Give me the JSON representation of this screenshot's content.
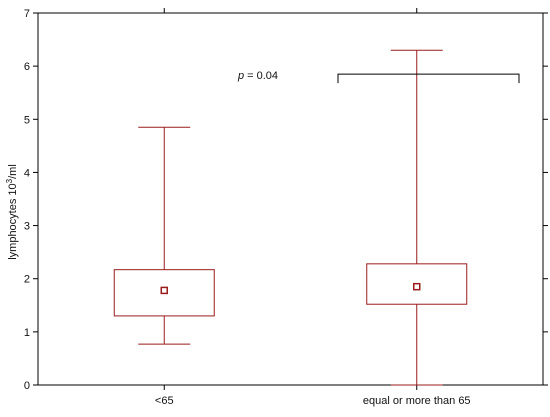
{
  "chart_data": {
    "type": "box",
    "title": "",
    "ylabel_main": "lymphocytes 10",
    "ylabel_sup": "3",
    "ylabel_tail": "/ml",
    "xlabel": "",
    "ylim": [
      0,
      7
    ],
    "yticks": [
      0,
      1,
      2,
      3,
      4,
      5,
      6,
      7
    ],
    "grid": false,
    "colors": {
      "box": "#9b1c1c",
      "bracket": "#000000"
    },
    "categories": [
      "<65",
      "equal or more than 65"
    ],
    "boxes": [
      {
        "category": "<65",
        "whisker_low": 0.77,
        "q1": 1.3,
        "median": 1.78,
        "q3": 2.17,
        "whisker_high": 4.85
      },
      {
        "category": "equal or more than 65",
        "whisker_low": 0.0,
        "q1": 1.52,
        "median": 1.85,
        "q3": 2.28,
        "whisker_high": 6.3
      }
    ],
    "annotation": {
      "p_label": "p",
      "p_value": " = 0.04",
      "bracket_y": 5.85
    }
  }
}
